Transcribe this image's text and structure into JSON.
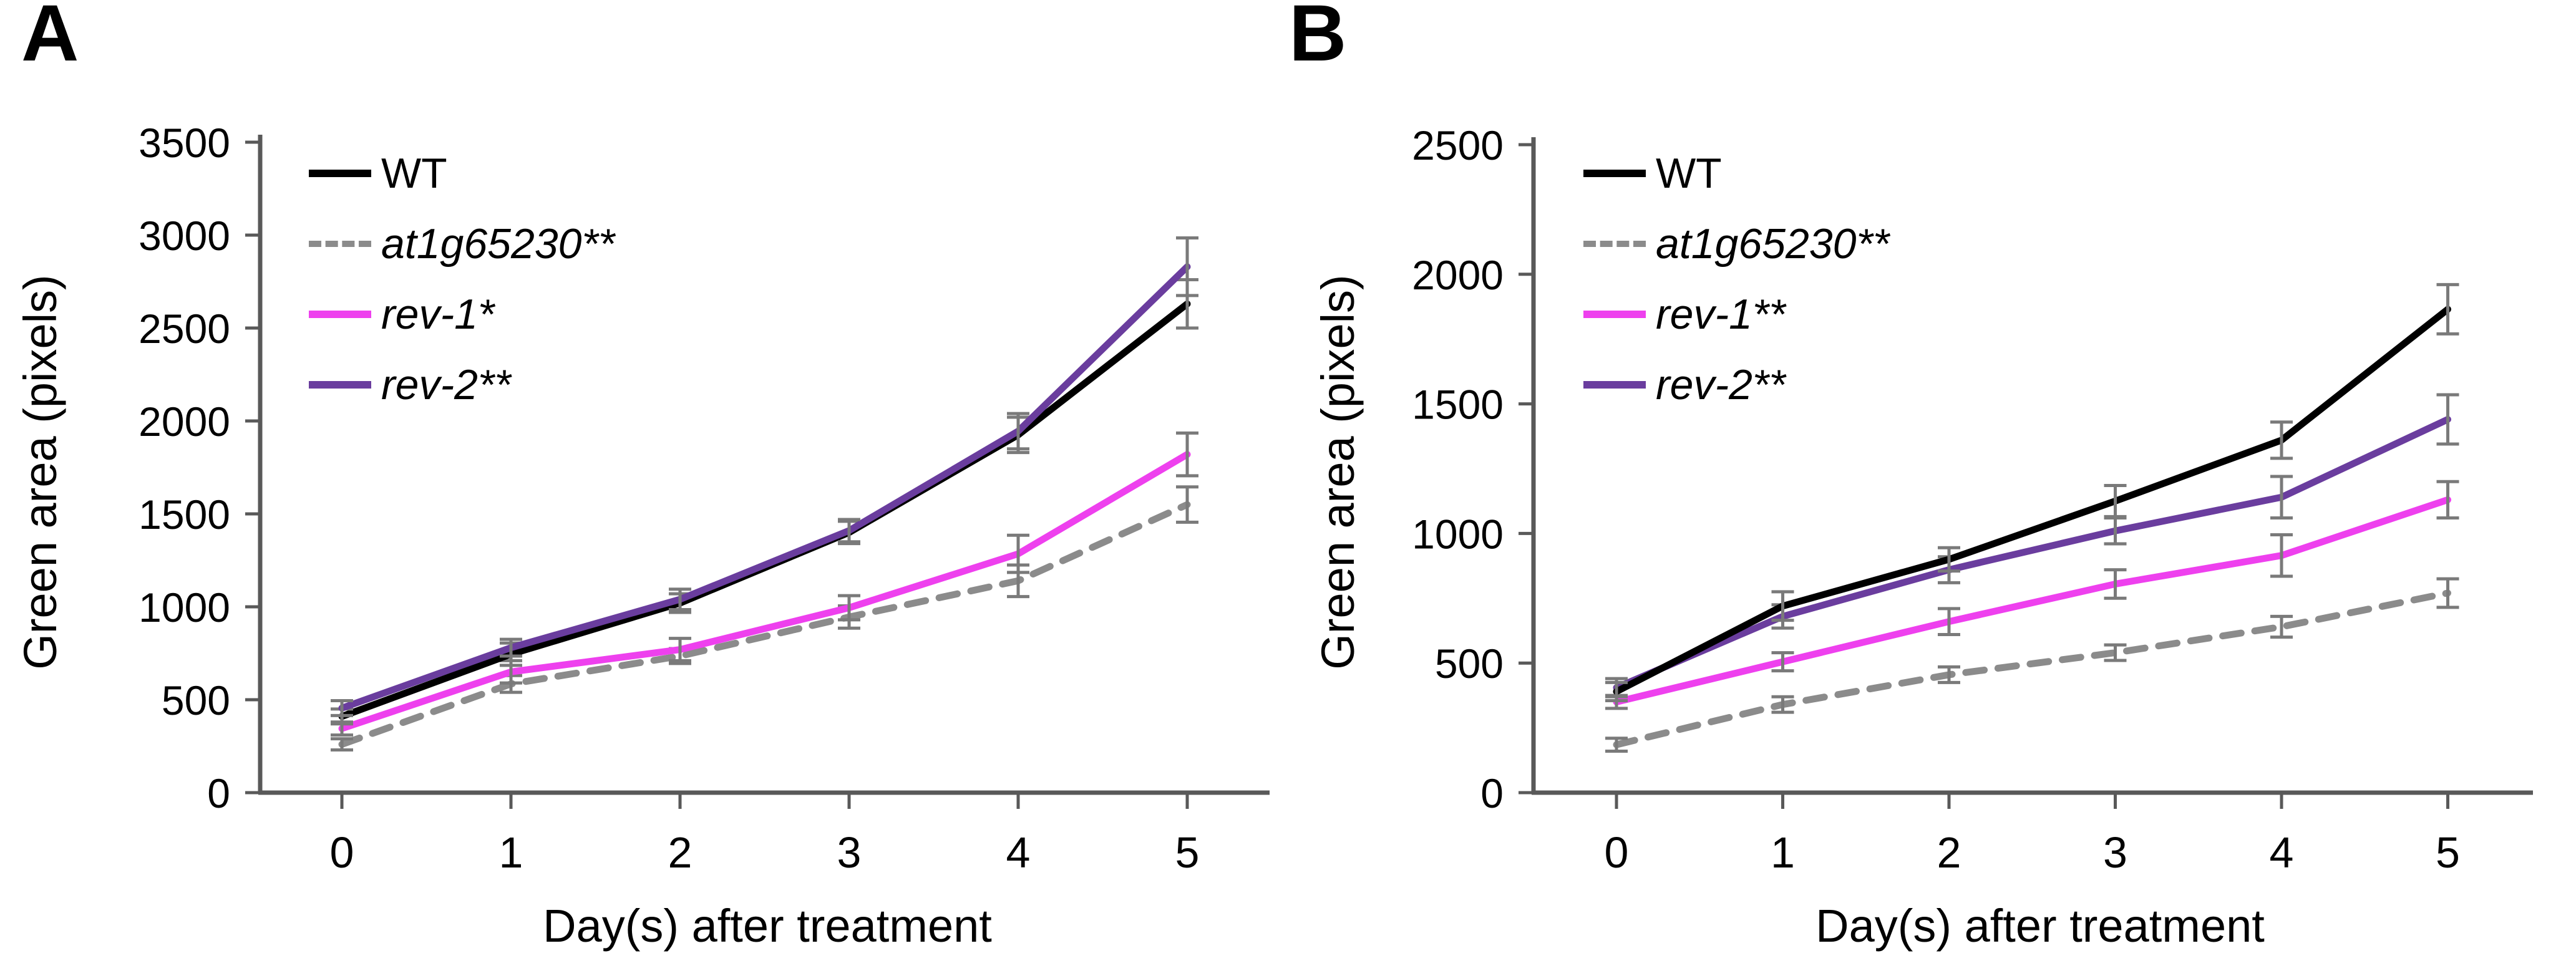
{
  "chart_data": [
    {
      "type": "line",
      "panel_label": "A",
      "xlabel": "Day(s) after treatment",
      "ylabel": "Green area (pixels)",
      "x": [
        0,
        1,
        2,
        3,
        4,
        5
      ],
      "xtick_labels": [
        "0",
        "1",
        "2",
        "3",
        "4",
        "5"
      ],
      "ytick_labels": [
        "0",
        "500",
        "1000",
        "1500",
        "2000",
        "2500",
        "3000",
        "3500"
      ],
      "ylim": [
        0,
        3500
      ],
      "grid": false,
      "legend_position": "upper-left-inside",
      "axis_color": "#595959",
      "error_bar_color": "#7a7a7a",
      "series": [
        {
          "name": "WT",
          "italic": false,
          "color": "#000000",
          "line_style": "solid",
          "values": [
            410,
            745,
            1020,
            1400,
            1925,
            2630
          ],
          "errors": [
            40,
            60,
            50,
            60,
            95,
            130
          ]
        },
        {
          "name": "at1g65230**",
          "italic": true,
          "color": "#8b8b8b",
          "line_style": "dashed",
          "values": [
            260,
            585,
            735,
            945,
            1140,
            1550
          ],
          "errors": [
            30,
            45,
            40,
            60,
            85,
            95
          ]
        },
        {
          "name": "rev-1*",
          "italic": true,
          "color": "#ee40ee",
          "line_style": "solid",
          "values": [
            345,
            650,
            770,
            995,
            1285,
            1820
          ],
          "errors": [
            35,
            60,
            60,
            65,
            100,
            115
          ]
        },
        {
          "name": "rev-2**",
          "italic": true,
          "color": "#6a3d9e",
          "line_style": "solid",
          "values": [
            455,
            780,
            1040,
            1410,
            1945,
            2830
          ],
          "errors": [
            40,
            45,
            55,
            60,
            95,
            155
          ]
        }
      ]
    },
    {
      "type": "line",
      "panel_label": "B",
      "xlabel": "Day(s) after treatment",
      "ylabel": "Green area (pixels)",
      "x": [
        0,
        1,
        2,
        3,
        4,
        5
      ],
      "xtick_labels": [
        "0",
        "1",
        "2",
        "3",
        "4",
        "5"
      ],
      "ytick_labels": [
        "0",
        "500",
        "1000",
        "1500",
        "2000",
        "2500"
      ],
      "ylim": [
        0,
        2500
      ],
      "grid": false,
      "legend_position": "upper-left-inside",
      "axis_color": "#595959",
      "error_bar_color": "#7a7a7a",
      "series": [
        {
          "name": "WT",
          "italic": false,
          "color": "#000000",
          "line_style": "solid",
          "values": [
            390,
            720,
            900,
            1125,
            1360,
            1865
          ],
          "errors": [
            35,
            55,
            45,
            60,
            70,
            95
          ]
        },
        {
          "name": "at1g65230**",
          "italic": true,
          "color": "#8b8b8b",
          "line_style": "dashed",
          "values": [
            185,
            340,
            455,
            540,
            640,
            770
          ],
          "errors": [
            25,
            30,
            30,
            30,
            40,
            55
          ]
        },
        {
          "name": "rev-1**",
          "italic": true,
          "color": "#ee40ee",
          "line_style": "solid",
          "values": [
            350,
            505,
            660,
            805,
            915,
            1130
          ],
          "errors": [
            25,
            35,
            50,
            55,
            80,
            70
          ]
        },
        {
          "name": "rev-2**",
          "italic": true,
          "color": "#6a3d9e",
          "line_style": "solid",
          "values": [
            405,
            680,
            860,
            1010,
            1140,
            1440
          ],
          "errors": [
            35,
            45,
            50,
            50,
            80,
            95
          ]
        }
      ]
    }
  ]
}
